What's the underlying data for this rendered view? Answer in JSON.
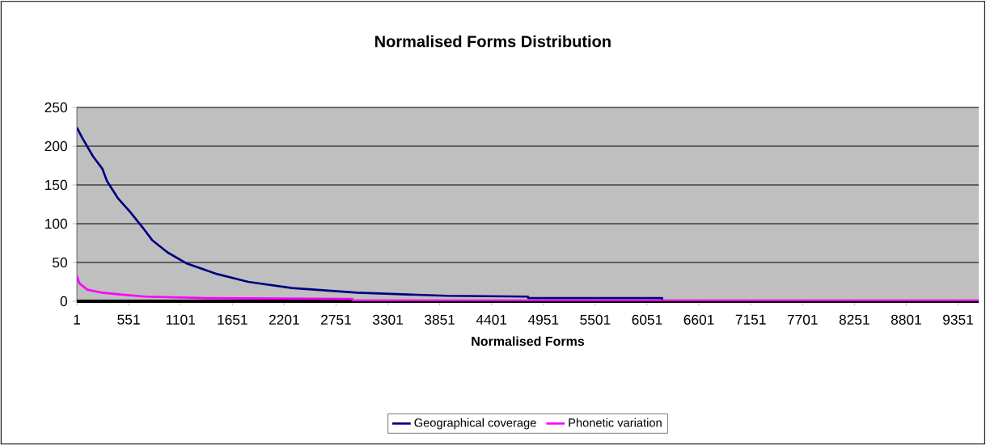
{
  "chart_data": {
    "type": "line",
    "title": "Normalised Forms Distribution",
    "xlabel": "Normalised Forms",
    "xlim": [
      1,
      9570
    ],
    "xticks": [
      1,
      551,
      1101,
      1651,
      2201,
      2751,
      3301,
      3851,
      4401,
      4951,
      5501,
      6051,
      6601,
      7151,
      7701,
      8251,
      8801,
      9351
    ],
    "ylim": [
      0,
      250
    ],
    "yticks": [
      0,
      50,
      100,
      150,
      200,
      250
    ],
    "grid": "y",
    "legend": "bottom",
    "marker": "none",
    "line_style": "solid",
    "series": [
      {
        "name": "Geographical coverage",
        "color": "#000080",
        "x": [
          1,
          57,
          172,
          271,
          321,
          436,
          568,
          700,
          799,
          963,
          1161,
          1491,
          1820,
          2282,
          2974,
          3930,
          4788,
          4790,
          6211,
          6213
        ],
        "values": [
          224,
          211,
          187,
          171,
          155,
          133,
          115,
          95,
          79,
          63,
          49,
          35,
          25,
          17,
          11,
          7,
          6,
          4,
          4,
          1
        ]
      },
      {
        "name": "Phonetic variation",
        "color": "#ff00ff",
        "x": [
          1,
          28,
          112,
          271,
          436,
          733,
          1375,
          2925,
          2927,
          9570
        ],
        "values": [
          33,
          23,
          15,
          11,
          9,
          6,
          4,
          3,
          1,
          1
        ]
      }
    ]
  }
}
